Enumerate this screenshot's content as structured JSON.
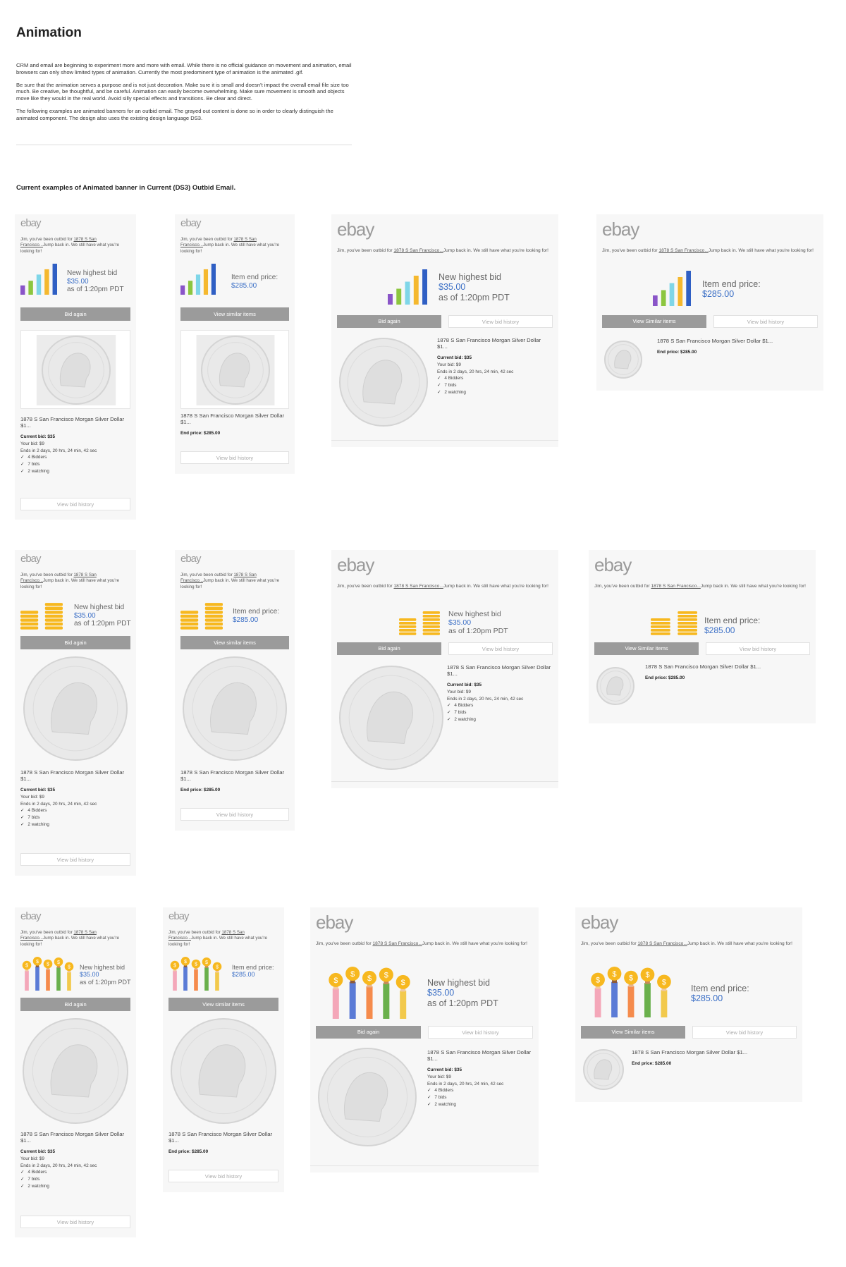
{
  "page": {
    "title": "Animation",
    "intro": [
      "CRM and email are beginning to experiment more and more with email. While there is no official guidance on movement and animation, email browsers can only show limited types of animation. Currently the most predominent type of animation is the animated .gif.",
      "Be sure that the animation serves a purpose and is not just decoration. Make sure it is small and doesn't impact the overall email file size too much. Be creative, be thoughtful, and be careful. Animation can easily become overwhelming. Make sure movement is smooth and objects move like they would in the real world. Avoid silly special effects and transitions. Be clear and direct.",
      "The following examples are animated banners for an outbid email. The grayed out content is done so in order to clearly distinguish the animated component. The design also uses the existing design language DS3."
    ],
    "subtitle": "Current examples of Animated banner in Current (DS3) Outbid Email."
  },
  "email": {
    "logo": "ebay",
    "msg_pre": "Jim, you've been outbid for ",
    "msg_link": "1878 S San Francisco...",
    "msg_post": "Jump back in. We still have what you're looking for!",
    "new_highest_bid": "New highest bid",
    "bid_amount": "$35.00",
    "as_of": "as of 1:20pm PDT",
    "item_end_price": "Item end price:",
    "end_amount": "$285.00",
    "bid_again": "Bid again",
    "view_similar_items": "View similar items",
    "view_similar_items_alt": "View Similar items",
    "view_bid_history": "View bid history",
    "item_title": "1878 S San Francisco Morgan Silver Dollar $1...",
    "current_bid": "Current bid: $35",
    "your_bid": "Your bid: $9",
    "ends_in": "Ends in 2 days, 20 hrs, 24 min, 42 sec",
    "bidders": "4 Bidders",
    "bids": "7 bids",
    "watching": "2 watching",
    "end_price": "End price: $285.00"
  },
  "colors": {
    "bar_purple": "#8a55c8",
    "bar_green": "#8cc63f",
    "bar_cyan": "#7fd6e8",
    "bar_yellow": "#f5b82e",
    "bar_blue": "#2f5fc4",
    "coin": "#f7b81f",
    "link_blue": "#3b6fc6",
    "button_gray": "#9b9b9b"
  }
}
